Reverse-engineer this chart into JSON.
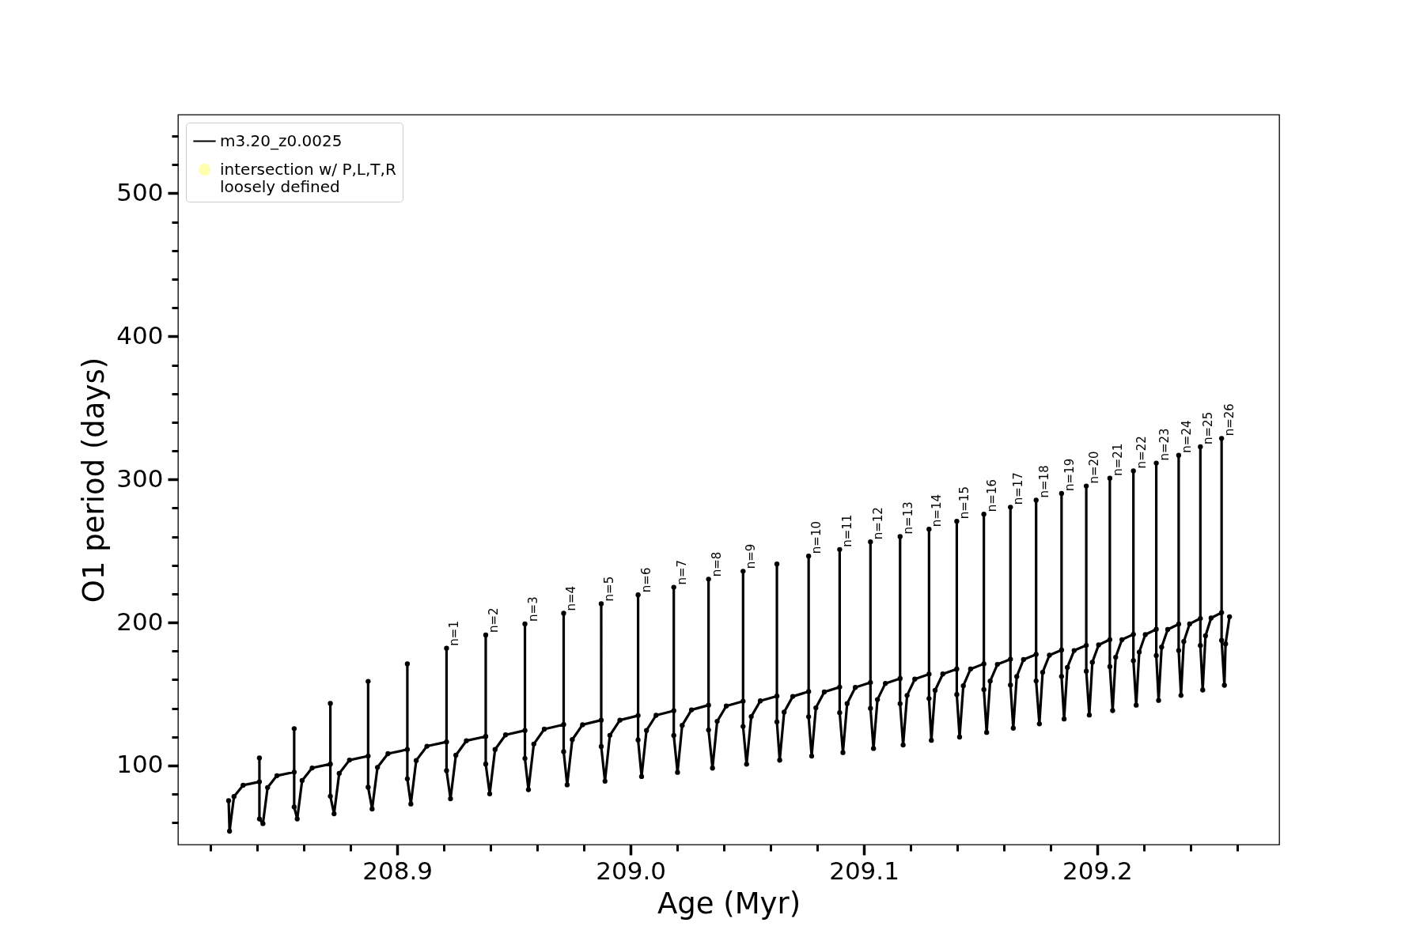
{
  "chart_data": {
    "type": "line",
    "xlabel": "Age (Myr)",
    "ylabel": "O1 period (days)",
    "xlim": [
      208.806,
      209.278
    ],
    "ylim": [
      44.7,
      555
    ],
    "xticks": [
      {
        "value": 208.82,
        "label": null
      },
      {
        "value": 208.84,
        "label": null
      },
      {
        "value": 208.86,
        "label": null
      },
      {
        "value": 208.88,
        "label": null
      },
      208.9,
      {
        "value": 208.92,
        "label": null
      },
      {
        "value": 208.94,
        "label": null
      },
      {
        "value": 208.96,
        "label": null
      },
      {
        "value": 208.98,
        "label": null
      },
      {
        "value": 209,
        "label": "209.0"
      },
      {
        "value": 209.02,
        "label": null
      },
      {
        "value": 209.04,
        "label": null
      },
      {
        "value": 209.06,
        "label": null
      },
      {
        "value": 209.08,
        "label": null
      },
      209.1,
      {
        "value": 209.12,
        "label": null
      },
      {
        "value": 209.14,
        "label": null
      },
      {
        "value": 209.16,
        "label": null
      },
      {
        "value": 209.18,
        "label": null
      },
      209.2,
      {
        "value": 209.22,
        "label": null
      },
      {
        "value": 209.24,
        "label": null
      },
      {
        "value": 209.26,
        "label": null
      }
    ],
    "yticks": [
      {
        "value": 60,
        "label": null
      },
      {
        "value": 80,
        "label": null
      },
      100,
      {
        "value": 120,
        "label": null
      },
      {
        "value": 140,
        "label": null
      },
      {
        "value": 160,
        "label": null
      },
      {
        "value": 180,
        "label": null
      },
      200,
      {
        "value": 220,
        "label": null
      },
      {
        "value": 240,
        "label": null
      },
      {
        "value": 260,
        "label": null
      },
      {
        "value": 280,
        "label": null
      },
      300,
      {
        "value": 320,
        "label": null
      },
      {
        "value": 340,
        "label": null
      },
      {
        "value": 360,
        "label": null
      },
      {
        "value": 380,
        "label": null
      },
      400,
      {
        "value": 420,
        "label": null
      },
      {
        "value": 440,
        "label": null
      },
      {
        "value": 460,
        "label": null
      },
      {
        "value": 480,
        "label": null
      },
      500,
      {
        "value": 520,
        "label": null
      },
      {
        "value": 540,
        "label": null
      }
    ],
    "grid": false,
    "legend": "top left",
    "marker": "circle",
    "line_style": "solid",
    "series": [
      {
        "name": "m3.20_z0.0025",
        "color": "#000000",
        "x": [
          208.8277,
          208.8281,
          208.83,
          208.8339,
          208.8409,
          208.8409,
          208.8409,
          208.8424,
          208.8444,
          208.8484,
          208.8558,
          208.8558,
          208.8558,
          208.8571,
          208.8592,
          208.8635,
          208.8713,
          208.8713,
          208.8713,
          208.8729,
          208.8751,
          208.8795,
          208.8875,
          208.8875,
          208.8875,
          208.8892,
          208.8915,
          208.896,
          208.9043,
          208.9043,
          208.9043,
          208.9058,
          208.9081,
          208.9127,
          208.9211,
          208.9211,
          208.9211,
          208.9228,
          208.9251,
          208.9296,
          208.9379,
          208.9379,
          208.9379,
          208.9396,
          208.9419,
          208.9464,
          208.9547,
          208.9547,
          208.9547,
          208.9562,
          208.9585,
          208.963,
          208.9713,
          208.9713,
          208.9713,
          208.9728,
          208.975,
          208.9794,
          208.9874,
          208.9874,
          208.9874,
          208.989,
          208.9911,
          208.9954,
          209.0032,
          209.0032,
          209.0032,
          209.0047,
          209.0068,
          209.0109,
          209.0185,
          209.0185,
          209.0185,
          209.0201,
          209.0221,
          209.0261,
          209.0334,
          209.0334,
          209.0334,
          209.0351,
          209.0371,
          209.041,
          209.0482,
          209.0482,
          209.0482,
          209.0497,
          209.0517,
          209.0556,
          209.0627,
          209.0627,
          209.0627,
          209.0639,
          209.0658,
          209.0695,
          209.0763,
          209.0763,
          209.0763,
          209.0776,
          209.0794,
          209.083,
          209.0896,
          209.0896,
          209.0896,
          209.091,
          209.0928,
          209.0963,
          209.1028,
          209.1028,
          209.1028,
          209.1041,
          209.1058,
          209.1092,
          209.1155,
          209.1155,
          209.1155,
          209.1168,
          209.1185,
          209.1218,
          209.1279,
          209.1279,
          209.1279,
          209.1289,
          209.1305,
          209.1338,
          209.1398,
          209.1398,
          209.1398,
          209.141,
          209.1426,
          209.1457,
          209.1514,
          209.1514,
          209.1514,
          209.1526,
          209.1541,
          209.1572,
          209.1628,
          209.1628,
          209.1628,
          209.164,
          209.1655,
          209.1684,
          209.1738,
          209.1738,
          209.1738,
          209.1752,
          209.1766,
          209.1795,
          209.1847,
          209.1847,
          209.1847,
          209.1858,
          209.1872,
          209.1901,
          209.1953,
          209.1953,
          209.1953,
          209.1966,
          209.1979,
          209.2006,
          209.2054,
          209.2054,
          209.2054,
          209.2066,
          209.2079,
          209.2106,
          209.2155,
          209.2155,
          209.2155,
          209.2167,
          209.218,
          209.2206,
          209.2253,
          209.2253,
          209.2253,
          209.2263,
          209.2276,
          209.2302,
          209.2349,
          209.2349,
          209.2349,
          209.2359,
          209.2371,
          209.2396,
          209.2442,
          209.2442,
          209.2442,
          209.2452,
          209.2464,
          209.2488,
          209.2533,
          209.2533,
          209.2533,
          209.2545,
          209.255,
          209.2567
        ],
        "values": [
          75.4,
          54.1,
          78.3,
          86.2,
          88.6,
          105.3,
          62.6,
          59.4,
          84.6,
          92.9,
          95.4,
          125.8,
          71.0,
          62.6,
          89.5,
          98.3,
          101.0,
          143.4,
          78.5,
          66.2,
          94.5,
          103.8,
          106.6,
          158.8,
          84.8,
          69.6,
          98.7,
          108.3,
          111.2,
          171.1,
          90.7,
          73.1,
          103.5,
          113.5,
          116.5,
          182.0,
          96.4,
          76.7,
          107.2,
          117.3,
          120.3,
          191.2,
          101.0,
          80.2,
          111.2,
          121.4,
          124.5,
          199.0,
          104.9,
          83.1,
          115.0,
          125.4,
          128.6,
          206.4,
          109.7,
          86.5,
          118.1,
          128.5,
          131.7,
          213.1,
          113.3,
          89.0,
          121.1,
          131.7,
          134.9,
          219.3,
          117.8,
          92.3,
          124.5,
          135.1,
          138.3,
          224.6,
          121.0,
          95.2,
          128.1,
          138.9,
          142.2,
          230.3,
          124.8,
          98.2,
          130.9,
          141.6,
          144.9,
          235.8,
          127.3,
          100.9,
          134.2,
          145.2,
          148.5,
          240.9,
          130.5,
          103.7,
          137.3,
          148.3,
          151.7,
          246.4,
          134.1,
          106.6,
          140.3,
          151.4,
          154.8,
          251.0,
          136.9,
          109.0,
          143.3,
          154.6,
          158.0,
          256.3,
          140.0,
          111.9,
          146.1,
          157.4,
          160.8,
          260.1,
          143.2,
          114.3,
          149.0,
          160.4,
          163.9,
          265.2,
          146.8,
          117.6,
          152.5,
          164.0,
          167.5,
          270.7,
          149.6,
          119.9,
          155.7,
          167.5,
          171.1,
          275.7,
          153.1,
          123.1,
          159.0,
          170.7,
          174.3,
          280.6,
          156.3,
          126.1,
          162.2,
          174.1,
          177.7,
          285.5,
          159.1,
          129.1,
          165.2,
          177.1,
          180.7,
          290.2,
          162.3,
          132.5,
          168.6,
          180.4,
          184.0,
          295.4,
          165.9,
          135.3,
          172.2,
          184.3,
          188.0,
          300.8,
          169.1,
          138.4,
          175.7,
          188.0,
          191.7,
          306.0,
          173.3,
          142.2,
          179.3,
          191.5,
          195.2,
          311.4,
          176.9,
          145.5,
          182.8,
          195.1,
          198.8,
          316.9,
          180.4,
          149.0,
          186.7,
          199.0,
          202.8,
          322.8,
          183.9,
          152.8,
          190.7,
          203.1,
          206.9,
          328.7,
          187.5,
          156.1,
          185.0,
          204.0
        ]
      },
      {
        "name": "intersection w/ P,L,T,R\nloosely defined",
        "type": "scatter",
        "color": "#ffffb0"
      }
    ],
    "annotations": [
      {
        "text": "n=1",
        "x": 208.9211,
        "y": 182.0
      },
      {
        "text": "n=2",
        "x": 208.9379,
        "y": 191.2
      },
      {
        "text": "n=3",
        "x": 208.9547,
        "y": 199.0
      },
      {
        "text": "n=4",
        "x": 208.9713,
        "y": 206.4
      },
      {
        "text": "n=5",
        "x": 208.9874,
        "y": 213.1
      },
      {
        "text": "n=6",
        "x": 209.0032,
        "y": 219.3
      },
      {
        "text": "n=7",
        "x": 209.0185,
        "y": 224.6
      },
      {
        "text": "n=8",
        "x": 209.0334,
        "y": 230.3
      },
      {
        "text": "n=9",
        "x": 209.0482,
        "y": 235.8
      },
      {
        "text": "n=10",
        "x": 209.0763,
        "y": 246.4
      },
      {
        "text": "n=11",
        "x": 209.0896,
        "y": 251.0
      },
      {
        "text": "n=12",
        "x": 209.1028,
        "y": 256.3
      },
      {
        "text": "n=13",
        "x": 209.1155,
        "y": 260.1
      },
      {
        "text": "n=14",
        "x": 209.1279,
        "y": 265.2
      },
      {
        "text": "n=15",
        "x": 209.1398,
        "y": 270.7
      },
      {
        "text": "n=16",
        "x": 209.1514,
        "y": 275.7
      },
      {
        "text": "n=17",
        "x": 209.1628,
        "y": 280.6
      },
      {
        "text": "n=18",
        "x": 209.1738,
        "y": 285.5
      },
      {
        "text": "n=19",
        "x": 209.1847,
        "y": 290.2
      },
      {
        "text": "n=20",
        "x": 209.1953,
        "y": 295.4
      },
      {
        "text": "n=21",
        "x": 209.2054,
        "y": 300.8
      },
      {
        "text": "n=22",
        "x": 209.2155,
        "y": 306.0
      },
      {
        "text": "n=23",
        "x": 209.2253,
        "y": 311.4
      },
      {
        "text": "n=24",
        "x": 209.2349,
        "y": 316.9
      },
      {
        "text": "n=25",
        "x": 209.2442,
        "y": 322.8
      },
      {
        "text": "n=26",
        "x": 209.2533,
        "y": 328.7
      }
    ]
  }
}
